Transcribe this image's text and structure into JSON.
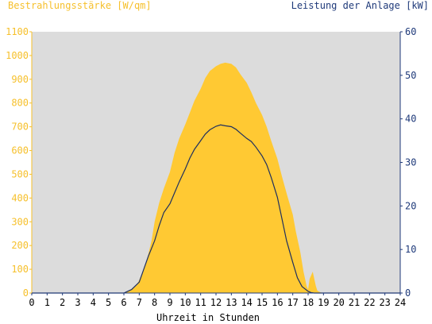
{
  "chart_data": {
    "type": "area",
    "ylabel_left": "Bestrahlungsstärke [W/qm]",
    "ylabel_right": "Leistung der Anlage [kW]",
    "xlabel": "Uhrzeit in Stunden",
    "x_ticks": [
      "0",
      "1",
      "2",
      "3",
      "4",
      "5",
      "6",
      "7",
      "8",
      "9",
      "10",
      "11",
      "12",
      "13",
      "14",
      "15",
      "16",
      "17",
      "18",
      "19",
      "20",
      "21",
      "22",
      "23",
      "24"
    ],
    "y_left_ticks": [
      "0",
      "100",
      "200",
      "300",
      "400",
      "500",
      "600",
      "700",
      "800",
      "900",
      "1000",
      "1100"
    ],
    "y_right_ticks": [
      "0",
      "10",
      "20",
      "30",
      "40",
      "50",
      "60"
    ],
    "xlim": [
      0,
      24
    ],
    "ylim_left": [
      0,
      1100
    ],
    "ylim_right": [
      0,
      60
    ],
    "series": [
      {
        "name": "Bestrahlungsstärke",
        "axis": "left",
        "color": "#ffc933",
        "x": [
          0,
          6.0,
          6.2,
          6.5,
          6.8,
          7.0,
          7.2,
          7.5,
          7.8,
          8.0,
          8.3,
          8.6,
          9.0,
          9.3,
          9.6,
          10.0,
          10.3,
          10.6,
          11.0,
          11.3,
          11.6,
          12.0,
          12.3,
          12.6,
          13.0,
          13.3,
          13.6,
          14.0,
          14.3,
          14.6,
          15.0,
          15.3,
          15.6,
          16.0,
          16.3,
          16.6,
          17.0,
          17.2,
          17.5,
          17.7,
          17.9,
          18.0,
          18.1,
          18.3,
          18.5,
          18.6,
          18.8,
          19.0,
          24
        ],
        "y": [
          0,
          0,
          5,
          15,
          30,
          55,
          85,
          140,
          220,
          300,
          380,
          440,
          510,
          590,
          650,
          710,
          760,
          810,
          860,
          905,
          935,
          955,
          965,
          970,
          965,
          950,
          920,
          885,
          845,
          800,
          750,
          700,
          640,
          565,
          490,
          420,
          330,
          260,
          170,
          90,
          30,
          15,
          60,
          90,
          30,
          10,
          3,
          0,
          0
        ]
      },
      {
        "name": "Leistung der Anlage",
        "axis": "right",
        "color": "#1f2f5e",
        "x": [
          0,
          6.0,
          6.5,
          7.0,
          7.3,
          7.6,
          8.0,
          8.3,
          8.6,
          9.0,
          9.3,
          9.6,
          10.0,
          10.3,
          10.6,
          11.0,
          11.3,
          11.6,
          12.0,
          12.3,
          12.6,
          13.0,
          13.3,
          13.6,
          14.0,
          14.3,
          14.6,
          15.0,
          15.3,
          15.6,
          16.0,
          16.3,
          16.6,
          17.0,
          17.3,
          17.6,
          18.0,
          18.2,
          18.4,
          18.6,
          24
        ],
        "y": [
          0,
          0,
          0.8,
          2.5,
          5.5,
          8.5,
          12,
          15.5,
          18.5,
          20.5,
          23,
          25.5,
          28.5,
          31,
          33,
          35,
          36.5,
          37.5,
          38.3,
          38.6,
          38.4,
          38.2,
          37.6,
          36.7,
          35.5,
          34.8,
          33.5,
          31.5,
          29.5,
          26.5,
          22,
          17,
          12,
          7,
          3.5,
          1.5,
          0.4,
          0.1,
          0,
          0,
          0
        ]
      }
    ],
    "background_color": "#dcdcdc",
    "grid": false
  }
}
